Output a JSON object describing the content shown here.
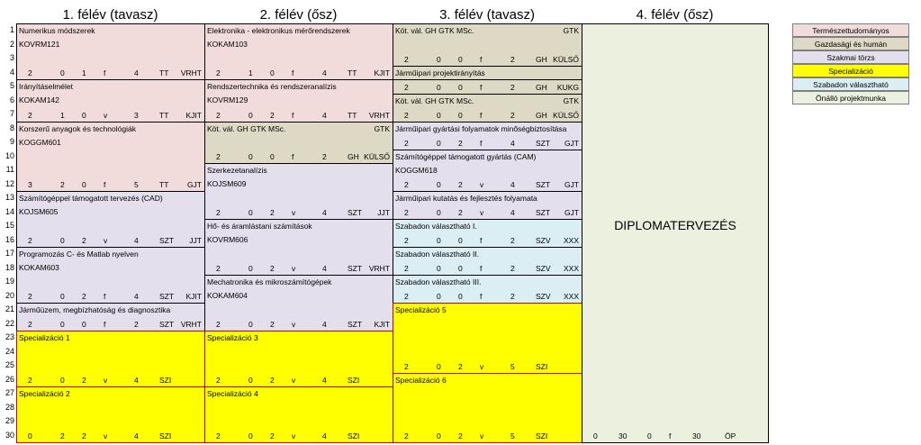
{
  "headers": [
    "1. félév (tavasz)",
    "2. félév (ősz)",
    "3. félév (tavasz)",
    "4. félév (ősz)"
  ],
  "row_numbers": [
    "1",
    "2",
    "3",
    "4",
    "5",
    "6",
    "7",
    "8",
    "9",
    "10",
    "11",
    "12",
    "13",
    "14",
    "15",
    "16",
    "17",
    "18",
    "19",
    "20",
    "21",
    "22",
    "23",
    "24",
    "25",
    "26",
    "27",
    "28",
    "29",
    "30"
  ],
  "colors": {
    "termeszettudomanyos": "#f2dcdb",
    "gazdasagi": "#ddd9c4",
    "szakmai": "#e4dfec",
    "specializacio": "#ffff00",
    "szabadon": "#daeef3",
    "onallo": "#ebf1de"
  },
  "legend": [
    {
      "label": "Természettudományos",
      "color": "#f2dcdb"
    },
    {
      "label": "Gazdasági és humán",
      "color": "#ddd9c4"
    },
    {
      "label": "Szakmai törzs",
      "color": "#e4dfec"
    },
    {
      "label": "Specializáció",
      "color": "#ffff00"
    },
    {
      "label": "Szabadon választható",
      "color": "#daeef3"
    },
    {
      "label": "Önálló projektmunka",
      "color": "#ebf1de"
    }
  ],
  "courses": [
    {
      "col": 0,
      "row": 1,
      "span": 4,
      "cat": "termeszettudomanyos",
      "name": "Numerikus módszerek",
      "code": "KOVRM121",
      "gtk": "",
      "vals": [
        "2",
        "0",
        "1",
        "f",
        "4",
        "TT",
        "VRHT"
      ]
    },
    {
      "col": 0,
      "row": 5,
      "span": 3,
      "cat": "termeszettudomanyos",
      "name": "Irányításelmélet",
      "code": "KOKAM142",
      "gtk": "",
      "vals": [
        "2",
        "1",
        "0",
        "v",
        "3",
        "TT",
        "KJIT"
      ]
    },
    {
      "col": 0,
      "row": 8,
      "span": 5,
      "cat": "termeszettudomanyos",
      "name": "Korszerű anyagok és technológiák",
      "code": "KOGGM601",
      "gtk": "",
      "vals": [
        "3",
        "2",
        "0",
        "f",
        "5",
        "TT",
        "GJT"
      ]
    },
    {
      "col": 0,
      "row": 13,
      "span": 4,
      "cat": "szakmai",
      "name": "Számítógéppel támogatott tervezés (CAD)",
      "code": "KOJSM605",
      "gtk": "",
      "vals": [
        "2",
        "0",
        "2",
        "v",
        "4",
        "SZT",
        "JJT"
      ]
    },
    {
      "col": 0,
      "row": 17,
      "span": 4,
      "cat": "szakmai",
      "name": "Programozás C- és Matlab nyelven",
      "code": "KOKAM603",
      "gtk": "",
      "vals": [
        "2",
        "0",
        "2",
        "f",
        "4",
        "SZT",
        "KJIT"
      ]
    },
    {
      "col": 0,
      "row": 21,
      "span": 2,
      "cat": "szakmai",
      "name": "Járműüzem, megbízhatóság és diagnosztika",
      "code": "",
      "gtk": "",
      "vals": [
        "2",
        "0",
        "0",
        "f",
        "2",
        "SZT",
        "VRHT"
      ]
    },
    {
      "col": 0,
      "row": 23,
      "span": 4,
      "cat": "specializacio",
      "name": "Specializáció 1",
      "code": "",
      "gtk": "",
      "vals": [
        "2",
        "0",
        "2",
        "v",
        "4",
        "SZI",
        ""
      ]
    },
    {
      "col": 0,
      "row": 27,
      "span": 4,
      "cat": "specializacio",
      "name": "Specializáció 2",
      "code": "",
      "gtk": "",
      "vals": [
        "0",
        "2",
        "2",
        "v",
        "4",
        "SZI",
        ""
      ]
    },
    {
      "col": 1,
      "row": 1,
      "span": 4,
      "cat": "termeszettudomanyos",
      "name": "Elektronika - elektronikus mérőrendszerek",
      "code": "KOKAM103",
      "gtk": "",
      "vals": [
        "2",
        "1",
        "0",
        "f",
        "4",
        "TT",
        "KJIT"
      ]
    },
    {
      "col": 1,
      "row": 5,
      "span": 3,
      "cat": "termeszettudomanyos",
      "name": "Rendszertechnika és rendszeranalízis",
      "code": "KOVRM129",
      "gtk": "",
      "vals": [
        "2",
        "0",
        "2",
        "f",
        "4",
        "TT",
        "VRHT"
      ]
    },
    {
      "col": 1,
      "row": 8,
      "span": 3,
      "cat": "gazdasagi",
      "name": "Köt. vál. GH GTK MSc.",
      "code": "",
      "gtk": "GTK",
      "vals": [
        "2",
        "0",
        "0",
        "f",
        "2",
        "GH",
        "KÜLSŐ"
      ]
    },
    {
      "col": 1,
      "row": 11,
      "span": 4,
      "cat": "szakmai",
      "name": "Szerkezetanalízis",
      "code": "KOJSM609",
      "gtk": "",
      "vals": [
        "2",
        "0",
        "2",
        "v",
        "4",
        "SZT",
        "JJT"
      ]
    },
    {
      "col": 1,
      "row": 15,
      "span": 4,
      "cat": "szakmai",
      "name": "Hő- és áramlástani számítások",
      "code": "KOVRM606",
      "gtk": "",
      "vals": [
        "2",
        "0",
        "2",
        "v",
        "4",
        "SZT",
        "VRHT"
      ]
    },
    {
      "col": 1,
      "row": 19,
      "span": 4,
      "cat": "szakmai",
      "name": "Mechatronika és mikroszámítógépek",
      "code": "KOKAM604",
      "gtk": "",
      "vals": [
        "2",
        "0",
        "2",
        "v",
        "4",
        "SZT",
        "KJIT"
      ]
    },
    {
      "col": 1,
      "row": 23,
      "span": 4,
      "cat": "specializacio",
      "name": "Specializáció 3",
      "code": "",
      "gtk": "",
      "vals": [
        "2",
        "0",
        "2",
        "v",
        "4",
        "SZI",
        ""
      ]
    },
    {
      "col": 1,
      "row": 27,
      "span": 4,
      "cat": "specializacio",
      "name": "Specializáció 4",
      "code": "",
      "gtk": "",
      "vals": [
        "2",
        "0",
        "2",
        "v",
        "4",
        "SZI",
        ""
      ]
    },
    {
      "col": 2,
      "row": 1,
      "span": 3,
      "cat": "gazdasagi",
      "name": "Köt. vál. GH GTK MSc.",
      "code": "",
      "gtk": "GTK",
      "vals": [
        "2",
        "0",
        "0",
        "f",
        "2",
        "GH",
        "KÜLSŐ"
      ]
    },
    {
      "col": 2,
      "row": 4,
      "span": 1,
      "cat": "gazdasagi",
      "name": "Járműipari projektirányítás",
      "code": "",
      "gtk": "",
      "vals": []
    },
    {
      "col": 2,
      "row": 5,
      "span": 1,
      "cat": "gazdasagi",
      "name": "",
      "code": "",
      "gtk": "",
      "vals": [
        "2",
        "0",
        "0",
        "f",
        "2",
        "GH",
        "KUKG"
      ]
    },
    {
      "col": 2,
      "row": 6,
      "span": 2,
      "cat": "gazdasagi",
      "name": "Köt. vál. GH GTK MSc.",
      "code": "",
      "gtk": "GTK",
      "vals": [
        "2",
        "0",
        "0",
        "f",
        "2",
        "GH",
        "KÜLSŐ"
      ]
    },
    {
      "col": 2,
      "row": 8,
      "span": 2,
      "cat": "szakmai",
      "name": "Járműipari gyártási folyamatok minőségbiztosítása",
      "code": "",
      "gtk": "",
      "vals": [
        "2",
        "0",
        "2",
        "f",
        "4",
        "SZT",
        "GJT"
      ]
    },
    {
      "col": 2,
      "row": 10,
      "span": 3,
      "cat": "szakmai",
      "name": "Számítógéppel támogatott gyártás (CAM)",
      "code": "KOGGM618",
      "gtk": "",
      "vals": [
        "2",
        "0",
        "2",
        "v",
        "4",
        "SZT",
        "GJT"
      ]
    },
    {
      "col": 2,
      "row": 13,
      "span": 2,
      "cat": "szakmai",
      "name": "Járműipari kutatás és fejlesztés folyamata",
      "code": "",
      "gtk": "",
      "vals": [
        "2",
        "0",
        "2",
        "v",
        "4",
        "SZT",
        "GJT"
      ]
    },
    {
      "col": 2,
      "row": 15,
      "span": 2,
      "cat": "szabadon",
      "name": "Szabadon választható I.",
      "code": "",
      "gtk": "",
      "vals": [
        "2",
        "0",
        "0",
        "f",
        "2",
        "SZV",
        "XXX"
      ]
    },
    {
      "col": 2,
      "row": 17,
      "span": 2,
      "cat": "szabadon",
      "name": "Szabadon választható II.",
      "code": "",
      "gtk": "",
      "vals": [
        "2",
        "0",
        "0",
        "f",
        "2",
        "SZV",
        "XXX"
      ]
    },
    {
      "col": 2,
      "row": 19,
      "span": 2,
      "cat": "szabadon",
      "name": "Szabadon választható III.",
      "code": "",
      "gtk": "",
      "vals": [
        "2",
        "0",
        "0",
        "f",
        "2",
        "SZV",
        "XXX"
      ]
    },
    {
      "col": 2,
      "row": 21,
      "span": 5,
      "cat": "specializacio",
      "name": "Specializáció 5",
      "code": "",
      "gtk": "",
      "vals": [
        "2",
        "0",
        "2",
        "v",
        "5",
        "SZI",
        ""
      ]
    },
    {
      "col": 2,
      "row": 26,
      "span": 5,
      "cat": "specializacio",
      "name": "Specializáció 6",
      "code": "",
      "gtk": "",
      "vals": [
        "2",
        "0",
        "2",
        "v",
        "5",
        "SZI",
        ""
      ]
    },
    {
      "col": 3,
      "row": 1,
      "span": 30,
      "cat": "onallo",
      "name": "",
      "code": "",
      "gtk": "",
      "vals": [
        "0",
        "30",
        "0",
        "f",
        "30",
        "ÖP",
        ""
      ],
      "title": "DIPLOMATERVEZÉS"
    }
  ]
}
